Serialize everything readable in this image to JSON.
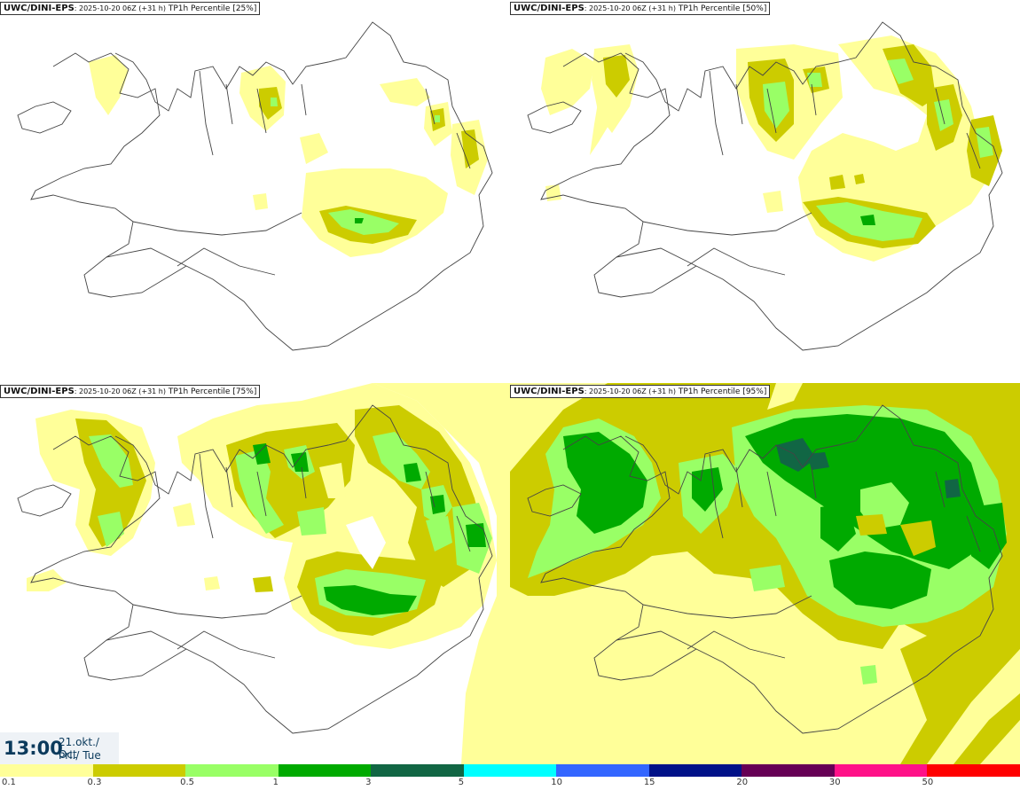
{
  "panels": [
    {
      "model": "UWC/DINI-EPS",
      "run": ": 2025-10-20 06Z (+31 h)",
      "variable": " TP1h Percentile [25%]",
      "level": 25
    },
    {
      "model": "UWC/DINI-EPS",
      "run": ": 2025-10-20 06Z (+31 h)",
      "variable": " TP1h Percentile [50%]",
      "level": 50
    },
    {
      "model": "UWC/DINI-EPS",
      "run": ": 2025-10-20 06Z (+31 h)",
      "variable": " TP1h Percentile [75%]",
      "level": 75
    },
    {
      "model": "UWC/DINI-EPS",
      "run": ": 2025-10-20 06Z (+31 h)",
      "variable": " TP1h Percentile [95%]",
      "level": 95
    }
  ],
  "valid_time": {
    "time": "13:00",
    "date_line1": "21.okt./ Oct",
    "date_line2": "Þri./ Tue"
  },
  "legend": {
    "ticks": [
      "0.1",
      "0.3",
      "0.5",
      "1",
      "3",
      "5",
      "10",
      "15",
      "20",
      "30",
      "50"
    ],
    "colors": [
      "#ffff99",
      "#cccc00",
      "#99ff66",
      "#00aa00",
      "#116644",
      "#00ffff",
      "#3366ff",
      "#001188",
      "#660055",
      "#ff1188",
      "#ff0000"
    ]
  },
  "colors": {
    "light": "#ffff99",
    "olive": "#cccc00",
    "lightgreen": "#99ff66",
    "green": "#00aa00",
    "darkgreen": "#116644",
    "coast": "#444444"
  }
}
